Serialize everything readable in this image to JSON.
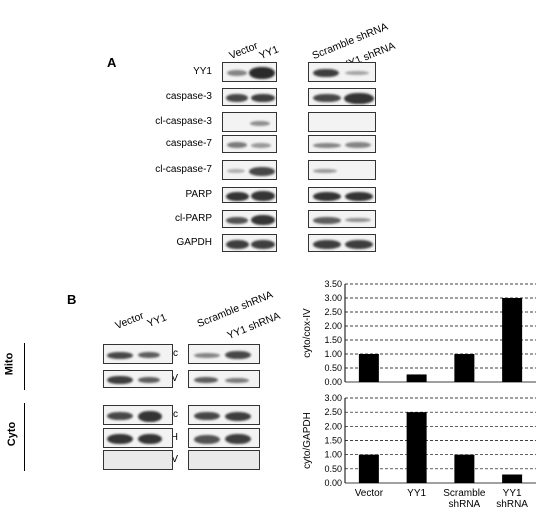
{
  "panelA": {
    "letter": "A",
    "lanes_left": [
      "Vector",
      "YY1"
    ],
    "lanes_right": [
      "Scramble shRNA",
      "YY1 shRNA"
    ],
    "rows": [
      "YY1",
      "caspase-3",
      "cl-caspase-3",
      "caspase-7",
      "cl-caspase-7",
      "PARP",
      "cl-PARP",
      "GAPDH"
    ]
  },
  "panelB": {
    "letter": "B",
    "lanes_left": [
      "Vector",
      "YY1"
    ],
    "lanes_right": [
      "Scramble shRNA",
      "YY1 shRNA"
    ],
    "mito_label": "Mito",
    "cyto_label": "Cyto",
    "mito_rows": [
      "cytochrome c",
      "cox-IV"
    ],
    "cyto_rows": [
      "cytochrome c",
      "GAPDH",
      "cox-IV"
    ]
  },
  "chart_data": [
    {
      "type": "bar",
      "categories": [
        "Vector",
        "YY1",
        "Scramble shRNA",
        "YY1 shRNA"
      ],
      "values": [
        1.0,
        0.27,
        1.0,
        3.0
      ],
      "ylabel": "cyto/cox-IV",
      "ylim": [
        0,
        3.5
      ],
      "yticks": [
        "0.00",
        "0.50",
        "1.00",
        "1.50",
        "2.00",
        "2.50",
        "3.00",
        "3.50"
      ],
      "grid": true,
      "color": "#000000"
    },
    {
      "type": "bar",
      "categories": [
        "Vector",
        "YY1",
        "Scramble shRNA",
        "YY1 shRNA"
      ],
      "category_lines": [
        [
          "Vector"
        ],
        [
          "YY1"
        ],
        [
          "Scramble",
          "shRNA"
        ],
        [
          "YY1",
          "shRNA"
        ]
      ],
      "values": [
        1.0,
        2.5,
        1.0,
        0.3
      ],
      "ylabel": "cyto/GAPDH",
      "ylim": [
        0,
        3.0
      ],
      "yticks": [
        "0.00",
        "0.50",
        "1.00",
        "1.50",
        "2.00",
        "2.50",
        "3.00"
      ],
      "grid": true,
      "color": "#000000"
    }
  ]
}
